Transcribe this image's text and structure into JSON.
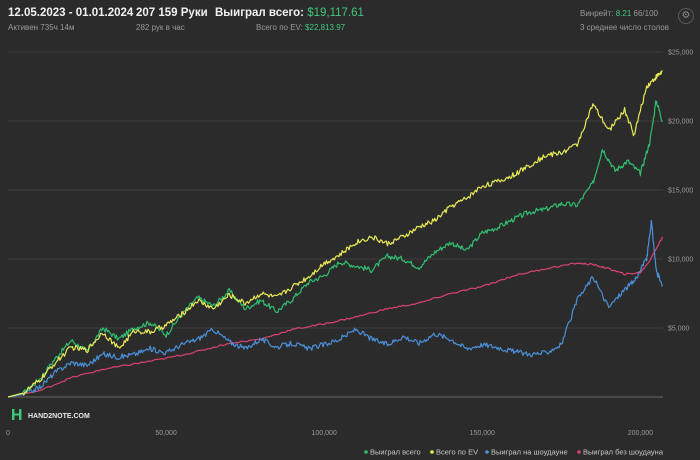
{
  "header": {
    "date_range": "12.05.2023 - 01.01.2024",
    "active": "Активен 735ч 14м",
    "hands": "207 159 Руки",
    "hands_per_hour": "282 рук в час",
    "won_total_label": "Выиграл всего:",
    "won_total_value": "$19,117.61",
    "ev_total_label": "Всего по EV:",
    "ev_total_value": "$22,813.97",
    "winrate_label": "Винрейт:",
    "winrate_value": "8.21",
    "winrate_extra": "66/100",
    "tables_avg": "3 среднее число столов"
  },
  "logo_text": "HAND2NOTE.COM",
  "icons": {
    "settings": "gear-icon",
    "logo": "hand2note-logo-icon"
  },
  "chart_data": {
    "type": "line",
    "xlim": [
      0,
      207159
    ],
    "ylim": [
      0,
      25000
    ],
    "x_ticks": [
      "0",
      "50,000",
      "100,000",
      "150,000",
      "200,000"
    ],
    "x_tick_values": [
      0,
      50000,
      100000,
      150000,
      200000
    ],
    "y_ticks": [
      "$5,000",
      "$10,000",
      "$15,000",
      "$20,000",
      "$25,000"
    ],
    "y_tick_values": [
      5000,
      10000,
      15000,
      20000,
      25000
    ],
    "grid": true,
    "legend_position": "bottom-right",
    "series": [
      {
        "name": "Выиграл всего",
        "color": "#2fbf71",
        "points": [
          [
            0,
            0
          ],
          [
            5000,
            300
          ],
          [
            10000,
            1300
          ],
          [
            15000,
            2800
          ],
          [
            20000,
            4100
          ],
          [
            25000,
            3300
          ],
          [
            30000,
            5000
          ],
          [
            35000,
            4200
          ],
          [
            40000,
            5000
          ],
          [
            45000,
            5400
          ],
          [
            50000,
            4500
          ],
          [
            55000,
            6000
          ],
          [
            60000,
            7200
          ],
          [
            65000,
            6600
          ],
          [
            70000,
            7700
          ],
          [
            75000,
            6400
          ],
          [
            80000,
            7000
          ],
          [
            85000,
            6200
          ],
          [
            90000,
            7100
          ],
          [
            95000,
            8300
          ],
          [
            100000,
            8800
          ],
          [
            105000,
            9800
          ],
          [
            110000,
            9500
          ],
          [
            115000,
            9200
          ],
          [
            120000,
            10200
          ],
          [
            125000,
            10000
          ],
          [
            130000,
            9400
          ],
          [
            135000,
            10500
          ],
          [
            140000,
            11200
          ],
          [
            145000,
            10600
          ],
          [
            150000,
            11900
          ],
          [
            155000,
            12300
          ],
          [
            160000,
            12900
          ],
          [
            165000,
            13400
          ],
          [
            170000,
            13600
          ],
          [
            175000,
            14000
          ],
          [
            180000,
            13900
          ],
          [
            185000,
            15500
          ],
          [
            188000,
            18000
          ],
          [
            192000,
            16400
          ],
          [
            196000,
            17100
          ],
          [
            200000,
            16200
          ],
          [
            203000,
            18500
          ],
          [
            205000,
            21500
          ],
          [
            207000,
            20000
          ]
        ]
      },
      {
        "name": "Всего по EV",
        "color": "#e8ea55",
        "points": [
          [
            0,
            0
          ],
          [
            5000,
            300
          ],
          [
            10000,
            1200
          ],
          [
            15000,
            2500
          ],
          [
            20000,
            3600
          ],
          [
            25000,
            3400
          ],
          [
            30000,
            4700
          ],
          [
            35000,
            3500
          ],
          [
            40000,
            4800
          ],
          [
            45000,
            4700
          ],
          [
            50000,
            5200
          ],
          [
            55000,
            6000
          ],
          [
            60000,
            7000
          ],
          [
            65000,
            6400
          ],
          [
            70000,
            7400
          ],
          [
            75000,
            6800
          ],
          [
            80000,
            7500
          ],
          [
            85000,
            7200
          ],
          [
            90000,
            8000
          ],
          [
            95000,
            8700
          ],
          [
            100000,
            9700
          ],
          [
            105000,
            10300
          ],
          [
            110000,
            11200
          ],
          [
            115000,
            11600
          ],
          [
            120000,
            11100
          ],
          [
            125000,
            11600
          ],
          [
            130000,
            12300
          ],
          [
            135000,
            12800
          ],
          [
            140000,
            13800
          ],
          [
            145000,
            14400
          ],
          [
            150000,
            15300
          ],
          [
            155000,
            15600
          ],
          [
            160000,
            16100
          ],
          [
            165000,
            16800
          ],
          [
            170000,
            17500
          ],
          [
            175000,
            17700
          ],
          [
            180000,
            18300
          ],
          [
            185000,
            21200
          ],
          [
            190000,
            19300
          ],
          [
            195000,
            20800
          ],
          [
            198000,
            19000
          ],
          [
            202000,
            22500
          ],
          [
            205000,
            23200
          ],
          [
            207000,
            23600
          ]
        ]
      },
      {
        "name": "Выиграл на шоудауне",
        "color": "#4a90d9",
        "points": [
          [
            0,
            0
          ],
          [
            5000,
            200
          ],
          [
            10000,
            700
          ],
          [
            15000,
            1800
          ],
          [
            20000,
            2500
          ],
          [
            25000,
            2300
          ],
          [
            30000,
            3100
          ],
          [
            35000,
            2900
          ],
          [
            40000,
            3100
          ],
          [
            45000,
            3500
          ],
          [
            50000,
            3200
          ],
          [
            55000,
            3800
          ],
          [
            60000,
            4200
          ],
          [
            65000,
            4900
          ],
          [
            70000,
            4000
          ],
          [
            75000,
            3500
          ],
          [
            80000,
            4200
          ],
          [
            85000,
            3600
          ],
          [
            90000,
            3900
          ],
          [
            95000,
            3500
          ],
          [
            100000,
            3800
          ],
          [
            105000,
            4200
          ],
          [
            110000,
            4900
          ],
          [
            115000,
            4200
          ],
          [
            120000,
            3800
          ],
          [
            125000,
            4400
          ],
          [
            130000,
            3900
          ],
          [
            135000,
            4600
          ],
          [
            140000,
            4200
          ],
          [
            145000,
            3500
          ],
          [
            150000,
            3800
          ],
          [
            155000,
            3600
          ],
          [
            160000,
            3300
          ],
          [
            165000,
            3100
          ],
          [
            170000,
            3200
          ],
          [
            175000,
            3800
          ],
          [
            180000,
            7000
          ],
          [
            185000,
            8700
          ],
          [
            190000,
            6500
          ],
          [
            195000,
            7800
          ],
          [
            198000,
            8400
          ],
          [
            202000,
            10000
          ],
          [
            203500,
            12700
          ],
          [
            205000,
            9200
          ],
          [
            207000,
            8000
          ]
        ]
      },
      {
        "name": "Выиграл без шоудауна",
        "color": "#d9436e",
        "points": [
          [
            0,
            0
          ],
          [
            10000,
            450
          ],
          [
            20000,
            1400
          ],
          [
            30000,
            2000
          ],
          [
            40000,
            2400
          ],
          [
            50000,
            2800
          ],
          [
            60000,
            3300
          ],
          [
            70000,
            3900
          ],
          [
            80000,
            4200
          ],
          [
            90000,
            4900
          ],
          [
            100000,
            5300
          ],
          [
            110000,
            5800
          ],
          [
            120000,
            6400
          ],
          [
            130000,
            6800
          ],
          [
            140000,
            7500
          ],
          [
            150000,
            8000
          ],
          [
            160000,
            8800
          ],
          [
            170000,
            9300
          ],
          [
            180000,
            9700
          ],
          [
            185000,
            9600
          ],
          [
            190000,
            9300
          ],
          [
            195000,
            8900
          ],
          [
            200000,
            9000
          ],
          [
            203000,
            9900
          ],
          [
            207000,
            11600
          ]
        ]
      }
    ]
  }
}
